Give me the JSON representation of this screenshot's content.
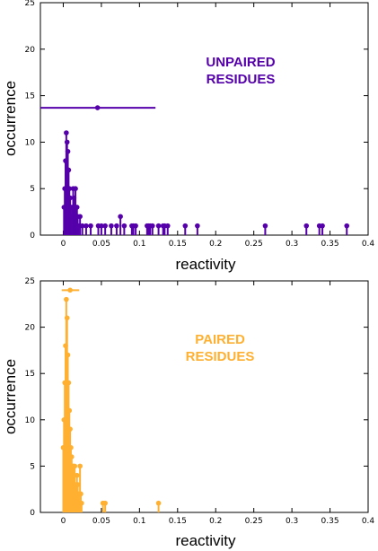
{
  "chart_data": [
    {
      "type": "stem",
      "xlabel": "reactivity",
      "ylabel": "occurrence",
      "xlim": [
        -0.03,
        0.4
      ],
      "ylim": [
        0,
        25
      ],
      "x_ticks": [
        "0",
        "0.05",
        "0.1",
        "0.15",
        "0.2",
        "0.25",
        "0.3",
        "0.35",
        "0.4"
      ],
      "y_ticks": [
        "0",
        "5",
        "10",
        "15",
        "20",
        "25"
      ],
      "annotation": [
        "UNPAIRED",
        "RESIDUES"
      ],
      "color": "#5500aa",
      "points": [
        [
          0.001,
          3
        ],
        [
          0.002,
          5
        ],
        [
          0.003,
          8
        ],
        [
          0.004,
          11
        ],
        [
          0.005,
          10
        ],
        [
          0.006,
          9
        ],
        [
          0.007,
          7
        ],
        [
          0.008,
          5
        ],
        [
          0.009,
          4
        ],
        [
          0.01,
          3
        ],
        [
          0.011,
          2
        ],
        [
          0.012,
          3
        ],
        [
          0.013,
          5
        ],
        [
          0.014,
          4
        ],
        [
          0.015,
          3
        ],
        [
          0.016,
          5
        ],
        [
          0.017,
          2
        ],
        [
          0.018,
          3
        ],
        [
          0.019,
          2
        ],
        [
          0.02,
          1
        ],
        [
          0.022,
          2
        ],
        [
          0.025,
          1
        ],
        [
          0.03,
          1
        ],
        [
          0.036,
          1
        ],
        [
          0.046,
          1
        ],
        [
          0.05,
          1
        ],
        [
          0.055,
          1
        ],
        [
          0.063,
          1
        ],
        [
          0.07,
          1
        ],
        [
          0.075,
          2
        ],
        [
          0.08,
          1
        ],
        [
          0.09,
          1
        ],
        [
          0.092,
          1
        ],
        [
          0.095,
          1
        ],
        [
          0.11,
          1
        ],
        [
          0.112,
          1
        ],
        [
          0.114,
          1
        ],
        [
          0.117,
          1
        ],
        [
          0.125,
          1
        ],
        [
          0.131,
          1
        ],
        [
          0.133,
          1
        ],
        [
          0.137,
          1
        ],
        [
          0.16,
          1
        ],
        [
          0.176,
          1
        ],
        [
          0.265,
          1
        ],
        [
          0.319,
          1
        ],
        [
          0.336,
          1
        ],
        [
          0.34,
          1
        ],
        [
          0.372,
          1
        ]
      ],
      "mean": {
        "x": 0.045,
        "y": 13.7,
        "xerr_low": -0.03,
        "xerr_high": 0.121
      }
    },
    {
      "type": "stem",
      "xlabel": "reactivity",
      "ylabel": "occurrence",
      "xlim": [
        -0.03,
        0.4
      ],
      "ylim": [
        0,
        25
      ],
      "x_ticks": [
        "0",
        "0.05",
        "0.1",
        "0.15",
        "0.2",
        "0.25",
        "0.3",
        "0.35",
        "0.4"
      ],
      "y_ticks": [
        "0",
        "5",
        "10",
        "15",
        "20",
        "25"
      ],
      "annotation": [
        "PAIRED",
        "RESIDUES"
      ],
      "color": "#ffb030",
      "points": [
        [
          0.0,
          7
        ],
        [
          0.001,
          10
        ],
        [
          0.002,
          14
        ],
        [
          0.003,
          18
        ],
        [
          0.004,
          23
        ],
        [
          0.005,
          21
        ],
        [
          0.006,
          17
        ],
        [
          0.007,
          14
        ],
        [
          0.008,
          11
        ],
        [
          0.009,
          9
        ],
        [
          0.01,
          7
        ],
        [
          0.011,
          6
        ],
        [
          0.012,
          5
        ],
        [
          0.013,
          5
        ],
        [
          0.014,
          4
        ],
        [
          0.015,
          5
        ],
        [
          0.016,
          3
        ],
        [
          0.017,
          2
        ],
        [
          0.018,
          4
        ],
        [
          0.019,
          3
        ],
        [
          0.02,
          2
        ],
        [
          0.021,
          1
        ],
        [
          0.022,
          5
        ],
        [
          0.023,
          2
        ],
        [
          0.024,
          1
        ],
        [
          0.052,
          1
        ],
        [
          0.055,
          1
        ],
        [
          0.125,
          1
        ]
      ],
      "mean": {
        "x": 0.009,
        "y": 24,
        "xerr_low": -0.002,
        "xerr_high": 0.021
      }
    }
  ]
}
